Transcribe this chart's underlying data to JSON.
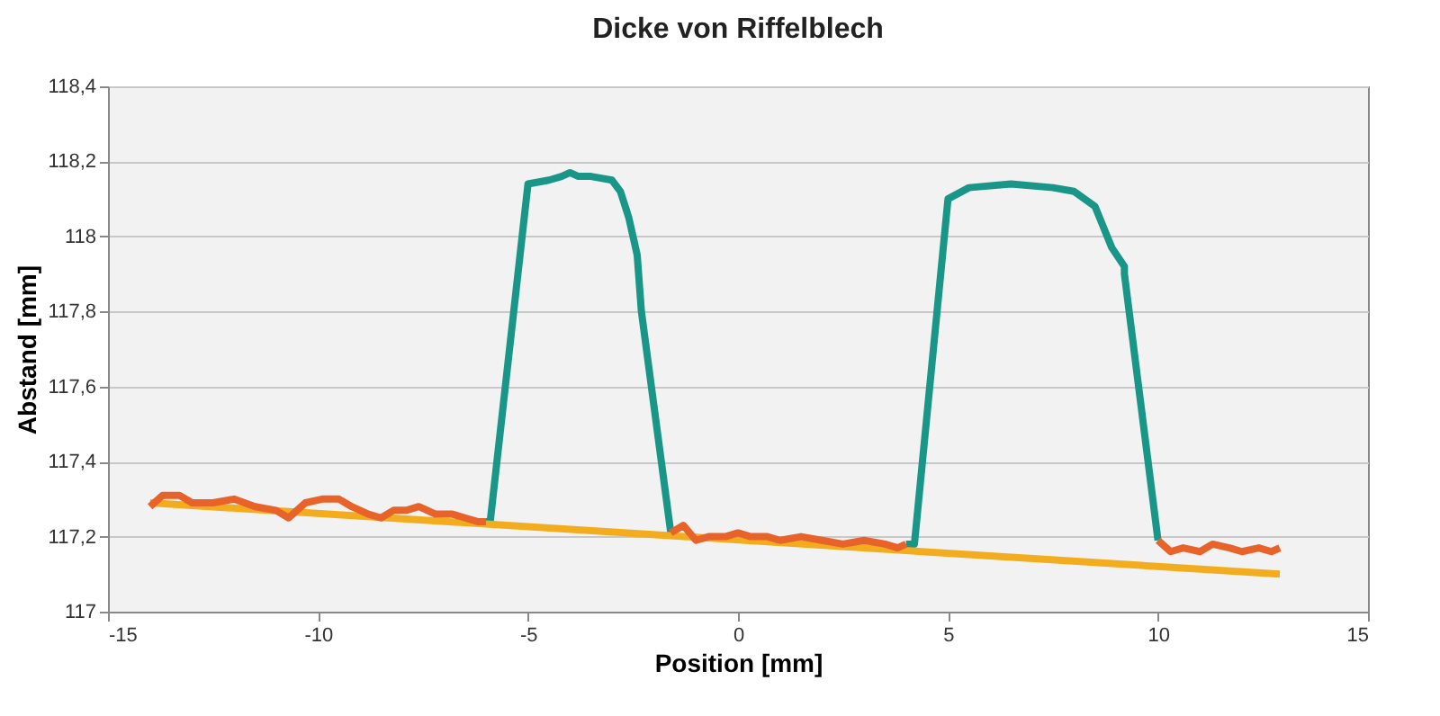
{
  "chart_data": {
    "type": "line",
    "title": "Dicke von Riffelblech",
    "xlabel": "Position [mm]",
    "ylabel": "Abstand [mm]",
    "xlim": [
      -15,
      15
    ],
    "xticks": [
      -15,
      -10,
      -5,
      0,
      5,
      10,
      15
    ],
    "ylim": [
      117,
      118.4
    ],
    "yticks": [
      117,
      {
        "value": 117.2,
        "label": "117,2"
      },
      {
        "value": 117.4,
        "label": "117,4"
      },
      {
        "value": 117.6,
        "label": "117,6"
      },
      {
        "value": 117.8,
        "label": "117,8"
      },
      118,
      {
        "value": 118.2,
        "label": "118,2"
      },
      {
        "value": 118.4,
        "label": "118,4"
      }
    ],
    "grid": "y",
    "marker": "none",
    "line_style": "solid",
    "series": [
      {
        "color": "#1a9688",
        "x": [
          -6,
          -5.9,
          -5,
          -4.5,
          -4.2,
          -4,
          -3.8,
          -3.5,
          -3,
          -2.8,
          -2.6,
          -2.4,
          -2.3,
          -1.6,
          0,
          4,
          4.2,
          5,
          5.5,
          6.5,
          7.5,
          8,
          8.5,
          8.9,
          9.2,
          9.2,
          10
        ],
        "values": [
          117.24,
          117.24,
          118.14,
          118.15,
          118.16,
          118.17,
          118.16,
          118.16,
          118.15,
          118.12,
          118.05,
          117.95,
          117.8,
          117.21,
          null,
          117.18,
          117.18,
          118.1,
          118.13,
          118.14,
          118.13,
          118.12,
          118.08,
          117.97,
          117.92,
          117.9,
          117.19
        ]
      },
      {
        "color": "#f2ac1e",
        "x": [
          -14,
          12.9
        ],
        "values": [
          117.29,
          117.1
        ]
      },
      {
        "color": "#e8632a",
        "x": [
          -14,
          -13.7,
          -13.3,
          -13,
          -12.5,
          -12,
          -11.5,
          -11,
          -10.7,
          -10.3,
          -9.9,
          -9.5,
          -9.2,
          -8.8,
          -8.5,
          -8.2,
          -7.9,
          -7.6,
          -7.2,
          -6.8,
          -6.5,
          -6.2,
          -6,
          -4,
          -1.6,
          -1.3,
          -1,
          -0.7,
          -0.3,
          0,
          0.3,
          0.7,
          1,
          1.5,
          2,
          2.5,
          3,
          3.5,
          3.8,
          4,
          7,
          10,
          10.3,
          10.6,
          11,
          11.3,
          11.7,
          12,
          12.4,
          12.7,
          12.9
        ],
        "values": [
          117.28,
          117.31,
          117.31,
          117.29,
          117.29,
          117.3,
          117.28,
          117.27,
          117.25,
          117.29,
          117.3,
          117.3,
          117.28,
          117.26,
          117.25,
          117.27,
          117.27,
          117.28,
          117.26,
          117.26,
          117.25,
          117.24,
          117.24,
          null,
          117.21,
          117.23,
          117.19,
          117.2,
          117.2,
          117.21,
          117.2,
          117.2,
          117.19,
          117.2,
          117.19,
          117.18,
          117.19,
          117.18,
          117.17,
          117.18,
          null,
          117.19,
          117.16,
          117.17,
          117.16,
          117.18,
          117.17,
          117.16,
          117.17,
          117.16,
          117.17
        ]
      }
    ]
  }
}
